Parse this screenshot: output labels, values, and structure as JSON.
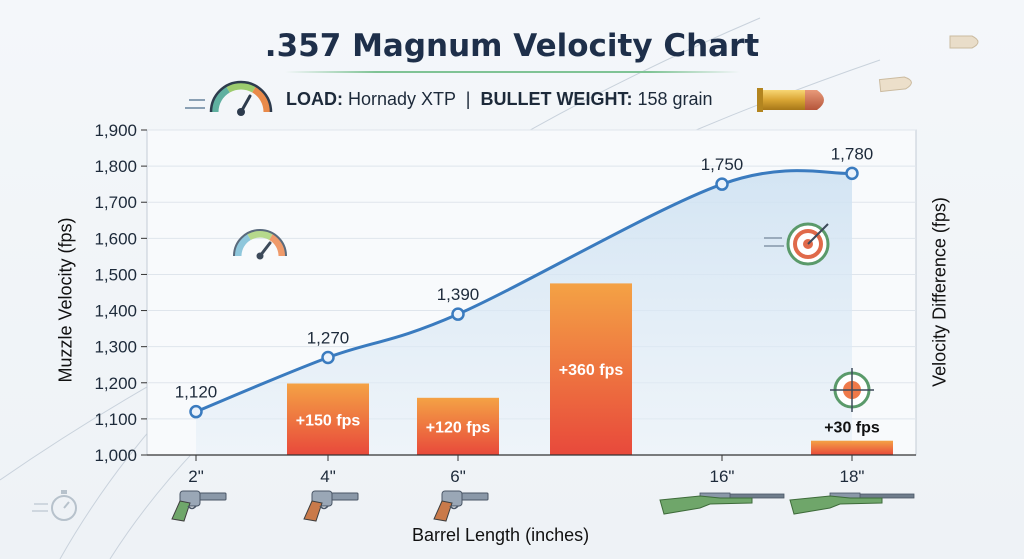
{
  "title": ".357 Magnum Velocity Chart",
  "subtitle": {
    "load_label": "LOAD:",
    "load_value": "Hornady XTP",
    "separator": "|",
    "weight_label": "BULLET WEIGHT:",
    "weight_value": "158 grain"
  },
  "chart_data": {
    "type": "line",
    "xlabel": "Barrel Length (inches)",
    "ylabel": "Muzzle Velocity (fps)",
    "y2label": "Velocity Difference (fps)",
    "ylim": [
      1000,
      1900
    ],
    "yticks": [
      "1,000",
      "1,100",
      "1,200",
      "1,300",
      "1,400",
      "1,500",
      "1,600",
      "1,700",
      "1,800",
      "1,900"
    ],
    "grid": true,
    "categories": [
      "2\"",
      "4\"",
      "6\"",
      "16\"",
      "18\""
    ],
    "velocity": {
      "values": [
        1120,
        1270,
        1390,
        1750,
        1780
      ],
      "labels": [
        "1,120",
        "1,270",
        "1,390",
        "1,750",
        "1,780"
      ],
      "color": "#3a7bbf"
    },
    "differences": [
      {
        "label": "+150 fps",
        "value": 150
      },
      {
        "label": "+120 fps",
        "value": 120
      },
      {
        "label": "+360 fps",
        "value": 360
      },
      {
        "label": "+30 fps",
        "value": 30
      }
    ],
    "bar_colors": [
      "#f4a245",
      "#e8493b"
    ],
    "weapon_icons": [
      "revolver-icon",
      "revolver-icon",
      "revolver-icon",
      "rifle-icon",
      "rifle-icon"
    ]
  }
}
